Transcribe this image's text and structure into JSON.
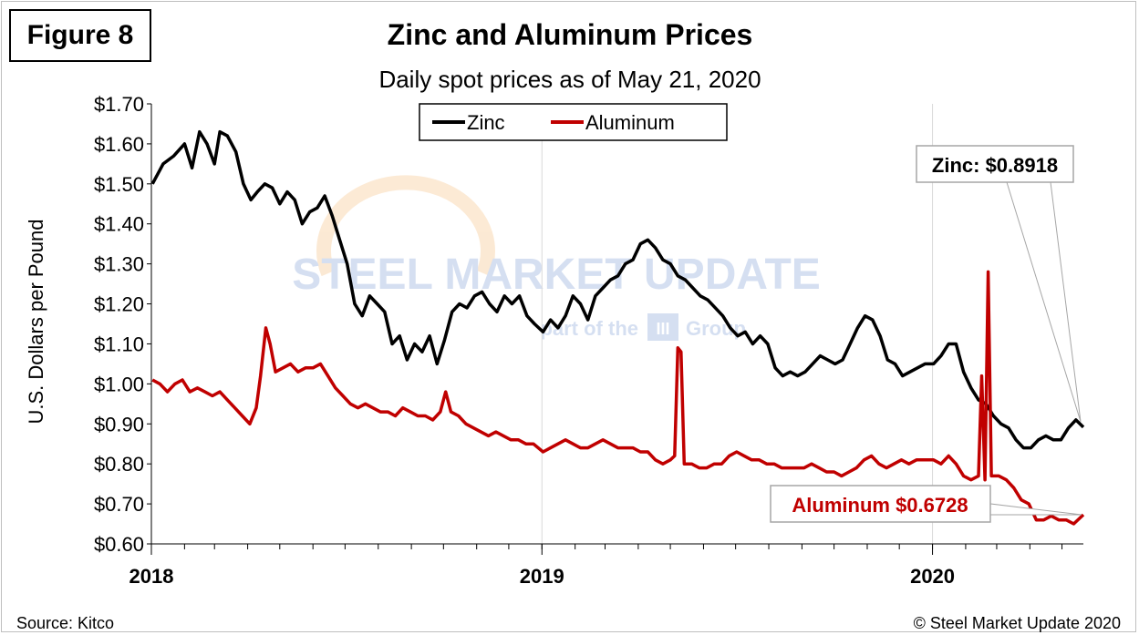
{
  "figure_label": "Figure 8",
  "footer": {
    "source": "Source: Kitco",
    "copyright": "© Steel Market Update 2020"
  },
  "watermark": {
    "line1": "STEEL MARKET UPDATE",
    "line2_a": "part of the",
    "line2_b": "Group",
    "logo_text": "III"
  },
  "annotations": {
    "zinc": "Zinc: $0.8918",
    "aluminum": "Aluminum $0.6728"
  },
  "colors": {
    "zinc": "#000000",
    "aluminum": "#c00000",
    "grid": "#d9d9d9"
  },
  "chart_data": {
    "type": "line",
    "title": "Zinc and Aluminum Prices",
    "subtitle": "Daily spot prices as of May 21, 2020",
    "xlabel": "",
    "ylabel": "U.S. Dollars per Pound",
    "xlim": [
      "2018-01-01",
      "2020-05-21"
    ],
    "ylim": [
      0.6,
      1.7
    ],
    "y_ticks": [
      0.6,
      0.7,
      0.8,
      0.9,
      1.0,
      1.1,
      1.2,
      1.3,
      1.4,
      1.5,
      1.6,
      1.7
    ],
    "y_tick_labels": [
      "$0.60",
      "$0.70",
      "$0.80",
      "$0.90",
      "$1.00",
      "$1.10",
      "$1.20",
      "$1.30",
      "$1.40",
      "$1.50",
      "$1.60",
      "$1.70"
    ],
    "x_tick_labels": [
      {
        "date": "2018-01-01",
        "label": "2018"
      },
      {
        "date": "2019-01-01",
        "label": "2019"
      },
      {
        "date": "2020-01-01",
        "label": "2020"
      }
    ],
    "month_ticks": [
      "2018-01-01",
      "2018-02-01",
      "2018-03-01",
      "2018-04-01",
      "2018-05-01",
      "2018-06-01",
      "2018-07-01",
      "2018-08-01",
      "2018-09-01",
      "2018-10-01",
      "2018-11-01",
      "2018-12-01",
      "2019-01-01",
      "2019-02-01",
      "2019-03-01",
      "2019-04-01",
      "2019-05-01",
      "2019-06-01",
      "2019-07-01",
      "2019-08-01",
      "2019-09-01",
      "2019-10-01",
      "2019-11-01",
      "2019-12-01",
      "2020-01-01",
      "2020-02-01",
      "2020-03-01",
      "2020-04-01",
      "2020-05-01"
    ],
    "grid": "vertical-at-years",
    "legend_position": "top-center",
    "series": [
      {
        "name": "Zinc",
        "color": "#000000",
        "points": [
          [
            "2018-01-02",
            1.5
          ],
          [
            "2018-01-12",
            1.55
          ],
          [
            "2018-01-22",
            1.57
          ],
          [
            "2018-02-01",
            1.6
          ],
          [
            "2018-02-08",
            1.54
          ],
          [
            "2018-02-15",
            1.63
          ],
          [
            "2018-02-22",
            1.6
          ],
          [
            "2018-03-01",
            1.55
          ],
          [
            "2018-03-06",
            1.63
          ],
          [
            "2018-03-13",
            1.62
          ],
          [
            "2018-03-21",
            1.58
          ],
          [
            "2018-03-28",
            1.5
          ],
          [
            "2018-04-04",
            1.46
          ],
          [
            "2018-04-10",
            1.48
          ],
          [
            "2018-04-17",
            1.5
          ],
          [
            "2018-04-24",
            1.49
          ],
          [
            "2018-05-01",
            1.45
          ],
          [
            "2018-05-08",
            1.48
          ],
          [
            "2018-05-15",
            1.46
          ],
          [
            "2018-05-22",
            1.4
          ],
          [
            "2018-05-29",
            1.43
          ],
          [
            "2018-06-05",
            1.44
          ],
          [
            "2018-06-12",
            1.47
          ],
          [
            "2018-06-19",
            1.42
          ],
          [
            "2018-06-26",
            1.36
          ],
          [
            "2018-07-03",
            1.3
          ],
          [
            "2018-07-10",
            1.2
          ],
          [
            "2018-07-17",
            1.17
          ],
          [
            "2018-07-24",
            1.22
          ],
          [
            "2018-07-31",
            1.2
          ],
          [
            "2018-08-07",
            1.18
          ],
          [
            "2018-08-14",
            1.1
          ],
          [
            "2018-08-21",
            1.12
          ],
          [
            "2018-08-28",
            1.06
          ],
          [
            "2018-09-04",
            1.1
          ],
          [
            "2018-09-11",
            1.08
          ],
          [
            "2018-09-18",
            1.12
          ],
          [
            "2018-09-25",
            1.05
          ],
          [
            "2018-10-02",
            1.11
          ],
          [
            "2018-10-09",
            1.18
          ],
          [
            "2018-10-16",
            1.2
          ],
          [
            "2018-10-23",
            1.19
          ],
          [
            "2018-10-30",
            1.22
          ],
          [
            "2018-11-06",
            1.23
          ],
          [
            "2018-11-13",
            1.2
          ],
          [
            "2018-11-20",
            1.18
          ],
          [
            "2018-11-27",
            1.22
          ],
          [
            "2018-12-04",
            1.2
          ],
          [
            "2018-12-11",
            1.22
          ],
          [
            "2018-12-18",
            1.17
          ],
          [
            "2018-12-25",
            1.15
          ],
          [
            "2019-01-02",
            1.13
          ],
          [
            "2019-01-09",
            1.16
          ],
          [
            "2019-01-16",
            1.14
          ],
          [
            "2019-01-23",
            1.17
          ],
          [
            "2019-01-30",
            1.22
          ],
          [
            "2019-02-06",
            1.2
          ],
          [
            "2019-02-13",
            1.16
          ],
          [
            "2019-02-20",
            1.22
          ],
          [
            "2019-02-27",
            1.24
          ],
          [
            "2019-03-06",
            1.26
          ],
          [
            "2019-03-13",
            1.27
          ],
          [
            "2019-03-20",
            1.3
          ],
          [
            "2019-03-27",
            1.31
          ],
          [
            "2019-04-03",
            1.35
          ],
          [
            "2019-04-10",
            1.36
          ],
          [
            "2019-04-17",
            1.34
          ],
          [
            "2019-04-24",
            1.31
          ],
          [
            "2019-05-01",
            1.3
          ],
          [
            "2019-05-08",
            1.27
          ],
          [
            "2019-05-15",
            1.26
          ],
          [
            "2019-05-22",
            1.24
          ],
          [
            "2019-05-29",
            1.22
          ],
          [
            "2019-06-05",
            1.21
          ],
          [
            "2019-06-12",
            1.19
          ],
          [
            "2019-06-19",
            1.17
          ],
          [
            "2019-06-26",
            1.14
          ],
          [
            "2019-07-03",
            1.12
          ],
          [
            "2019-07-10",
            1.13
          ],
          [
            "2019-07-17",
            1.1
          ],
          [
            "2019-07-24",
            1.12
          ],
          [
            "2019-07-31",
            1.1
          ],
          [
            "2019-08-07",
            1.04
          ],
          [
            "2019-08-14",
            1.02
          ],
          [
            "2019-08-21",
            1.03
          ],
          [
            "2019-08-28",
            1.02
          ],
          [
            "2019-09-04",
            1.03
          ],
          [
            "2019-09-11",
            1.05
          ],
          [
            "2019-09-18",
            1.07
          ],
          [
            "2019-09-25",
            1.06
          ],
          [
            "2019-10-02",
            1.05
          ],
          [
            "2019-10-09",
            1.06
          ],
          [
            "2019-10-16",
            1.1
          ],
          [
            "2019-10-23",
            1.14
          ],
          [
            "2019-10-30",
            1.17
          ],
          [
            "2019-11-06",
            1.16
          ],
          [
            "2019-11-13",
            1.12
          ],
          [
            "2019-11-20",
            1.06
          ],
          [
            "2019-11-27",
            1.05
          ],
          [
            "2019-12-04",
            1.02
          ],
          [
            "2019-12-11",
            1.03
          ],
          [
            "2019-12-18",
            1.04
          ],
          [
            "2019-12-25",
            1.05
          ],
          [
            "2020-01-02",
            1.05
          ],
          [
            "2020-01-09",
            1.07
          ],
          [
            "2020-01-16",
            1.1
          ],
          [
            "2020-01-23",
            1.1
          ],
          [
            "2020-01-30",
            1.03
          ],
          [
            "2020-02-06",
            0.99
          ],
          [
            "2020-02-13",
            0.96
          ],
          [
            "2020-02-20",
            0.95
          ],
          [
            "2020-02-27",
            0.92
          ],
          [
            "2020-03-05",
            0.9
          ],
          [
            "2020-03-12",
            0.89
          ],
          [
            "2020-03-19",
            0.86
          ],
          [
            "2020-03-26",
            0.84
          ],
          [
            "2020-04-02",
            0.84
          ],
          [
            "2020-04-09",
            0.86
          ],
          [
            "2020-04-16",
            0.87
          ],
          [
            "2020-04-23",
            0.86
          ],
          [
            "2020-04-30",
            0.86
          ],
          [
            "2020-05-07",
            0.89
          ],
          [
            "2020-05-14",
            0.91
          ],
          [
            "2020-05-21",
            0.8918
          ]
        ]
      },
      {
        "name": "Aluminum",
        "color": "#c00000",
        "points": [
          [
            "2018-01-02",
            1.01
          ],
          [
            "2018-01-09",
            1.0
          ],
          [
            "2018-01-16",
            0.98
          ],
          [
            "2018-01-23",
            1.0
          ],
          [
            "2018-01-30",
            1.01
          ],
          [
            "2018-02-06",
            0.98
          ],
          [
            "2018-02-13",
            0.99
          ],
          [
            "2018-02-20",
            0.98
          ],
          [
            "2018-02-27",
            0.97
          ],
          [
            "2018-03-06",
            0.98
          ],
          [
            "2018-03-13",
            0.96
          ],
          [
            "2018-03-20",
            0.94
          ],
          [
            "2018-03-27",
            0.92
          ],
          [
            "2018-04-03",
            0.9
          ],
          [
            "2018-04-09",
            0.94
          ],
          [
            "2018-04-13",
            1.02
          ],
          [
            "2018-04-18",
            1.14
          ],
          [
            "2018-04-22",
            1.1
          ],
          [
            "2018-04-27",
            1.03
          ],
          [
            "2018-05-04",
            1.04
          ],
          [
            "2018-05-11",
            1.05
          ],
          [
            "2018-05-18",
            1.03
          ],
          [
            "2018-05-25",
            1.04
          ],
          [
            "2018-06-01",
            1.04
          ],
          [
            "2018-06-08",
            1.05
          ],
          [
            "2018-06-15",
            1.02
          ],
          [
            "2018-06-22",
            0.99
          ],
          [
            "2018-06-29",
            0.97
          ],
          [
            "2018-07-06",
            0.95
          ],
          [
            "2018-07-13",
            0.94
          ],
          [
            "2018-07-20",
            0.95
          ],
          [
            "2018-07-27",
            0.94
          ],
          [
            "2018-08-03",
            0.93
          ],
          [
            "2018-08-10",
            0.93
          ],
          [
            "2018-08-17",
            0.92
          ],
          [
            "2018-08-24",
            0.94
          ],
          [
            "2018-08-31",
            0.93
          ],
          [
            "2018-09-07",
            0.92
          ],
          [
            "2018-09-14",
            0.92
          ],
          [
            "2018-09-21",
            0.91
          ],
          [
            "2018-09-28",
            0.93
          ],
          [
            "2018-10-03",
            0.98
          ],
          [
            "2018-10-08",
            0.93
          ],
          [
            "2018-10-15",
            0.92
          ],
          [
            "2018-10-22",
            0.9
          ],
          [
            "2018-10-29",
            0.89
          ],
          [
            "2018-11-05",
            0.88
          ],
          [
            "2018-11-12",
            0.87
          ],
          [
            "2018-11-19",
            0.88
          ],
          [
            "2018-11-26",
            0.87
          ],
          [
            "2018-12-03",
            0.86
          ],
          [
            "2018-12-10",
            0.86
          ],
          [
            "2018-12-17",
            0.85
          ],
          [
            "2018-12-24",
            0.85
          ],
          [
            "2019-01-02",
            0.83
          ],
          [
            "2019-01-09",
            0.84
          ],
          [
            "2019-01-16",
            0.85
          ],
          [
            "2019-01-23",
            0.86
          ],
          [
            "2019-01-30",
            0.85
          ],
          [
            "2019-02-06",
            0.84
          ],
          [
            "2019-02-13",
            0.84
          ],
          [
            "2019-02-20",
            0.85
          ],
          [
            "2019-02-27",
            0.86
          ],
          [
            "2019-03-06",
            0.85
          ],
          [
            "2019-03-13",
            0.84
          ],
          [
            "2019-03-20",
            0.84
          ],
          [
            "2019-03-27",
            0.84
          ],
          [
            "2019-04-03",
            0.83
          ],
          [
            "2019-04-10",
            0.83
          ],
          [
            "2019-04-17",
            0.81
          ],
          [
            "2019-04-24",
            0.8
          ],
          [
            "2019-05-01",
            0.81
          ],
          [
            "2019-05-05",
            0.82
          ],
          [
            "2019-05-08",
            1.09
          ],
          [
            "2019-05-11",
            1.08
          ],
          [
            "2019-05-14",
            0.8
          ],
          [
            "2019-05-21",
            0.8
          ],
          [
            "2019-05-28",
            0.79
          ],
          [
            "2019-06-04",
            0.79
          ],
          [
            "2019-06-11",
            0.8
          ],
          [
            "2019-06-18",
            0.8
          ],
          [
            "2019-06-25",
            0.82
          ],
          [
            "2019-07-02",
            0.83
          ],
          [
            "2019-07-09",
            0.82
          ],
          [
            "2019-07-16",
            0.81
          ],
          [
            "2019-07-23",
            0.81
          ],
          [
            "2019-07-30",
            0.8
          ],
          [
            "2019-08-06",
            0.8
          ],
          [
            "2019-08-13",
            0.79
          ],
          [
            "2019-08-20",
            0.79
          ],
          [
            "2019-08-27",
            0.79
          ],
          [
            "2019-09-03",
            0.79
          ],
          [
            "2019-09-10",
            0.8
          ],
          [
            "2019-09-17",
            0.79
          ],
          [
            "2019-09-24",
            0.78
          ],
          [
            "2019-10-01",
            0.78
          ],
          [
            "2019-10-08",
            0.77
          ],
          [
            "2019-10-15",
            0.78
          ],
          [
            "2019-10-22",
            0.79
          ],
          [
            "2019-10-29",
            0.81
          ],
          [
            "2019-11-05",
            0.82
          ],
          [
            "2019-11-12",
            0.8
          ],
          [
            "2019-11-19",
            0.79
          ],
          [
            "2019-11-26",
            0.8
          ],
          [
            "2019-12-03",
            0.81
          ],
          [
            "2019-12-10",
            0.8
          ],
          [
            "2019-12-17",
            0.81
          ],
          [
            "2019-12-24",
            0.81
          ],
          [
            "2020-01-02",
            0.81
          ],
          [
            "2020-01-09",
            0.8
          ],
          [
            "2020-01-16",
            0.82
          ],
          [
            "2020-01-23",
            0.8
          ],
          [
            "2020-01-30",
            0.77
          ],
          [
            "2020-02-06",
            0.76
          ],
          [
            "2020-02-13",
            0.77
          ],
          [
            "2020-02-16",
            1.02
          ],
          [
            "2020-02-19",
            0.76
          ],
          [
            "2020-02-22",
            1.28
          ],
          [
            "2020-02-25",
            0.77
          ],
          [
            "2020-03-03",
            0.77
          ],
          [
            "2020-03-10",
            0.76
          ],
          [
            "2020-03-17",
            0.74
          ],
          [
            "2020-03-24",
            0.71
          ],
          [
            "2020-03-31",
            0.7
          ],
          [
            "2020-04-07",
            0.66
          ],
          [
            "2020-04-14",
            0.66
          ],
          [
            "2020-04-21",
            0.67
          ],
          [
            "2020-04-28",
            0.66
          ],
          [
            "2020-05-05",
            0.66
          ],
          [
            "2020-05-12",
            0.65
          ],
          [
            "2020-05-21",
            0.6728
          ]
        ]
      }
    ]
  }
}
